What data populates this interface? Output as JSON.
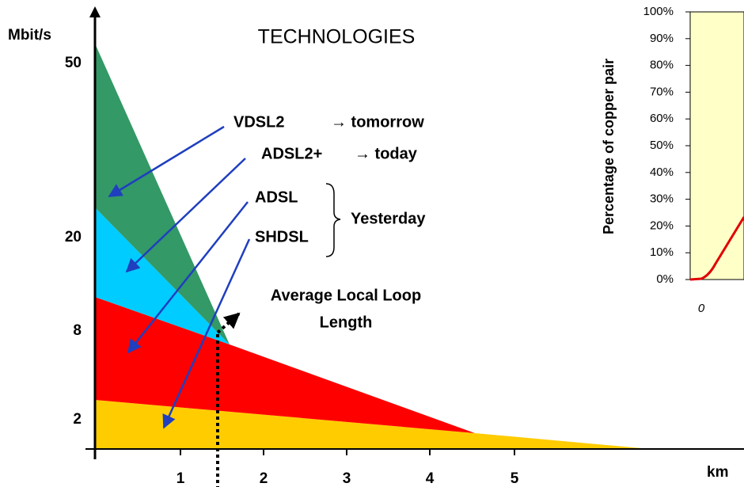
{
  "title": "TECHNOLOGIES",
  "y_axis": {
    "label": "Mbit/s",
    "ticks": [
      "50",
      "20",
      "8",
      "2"
    ]
  },
  "x_axis": {
    "label": "km",
    "ticks": [
      "1",
      "2",
      "3",
      "4",
      "5"
    ]
  },
  "labels": {
    "vdsl2": "VDSL2",
    "tomorrow": "→ tomorrow",
    "adsl2plus": "ADSL2+",
    "today": "→ today",
    "adsl": "ADSL",
    "shdsl": "SHDSL",
    "yesterday": "Yesterday",
    "average_1": "Average Local Loop",
    "average_2": "Length"
  },
  "inset": {
    "y_label": "Percentage of copper pair",
    "ticks": [
      "0%",
      "10%",
      "20%",
      "30%",
      "40%",
      "50%",
      "60%",
      "70%",
      "80%",
      "90%",
      "100%"
    ],
    "x_tick": "0"
  }
}
